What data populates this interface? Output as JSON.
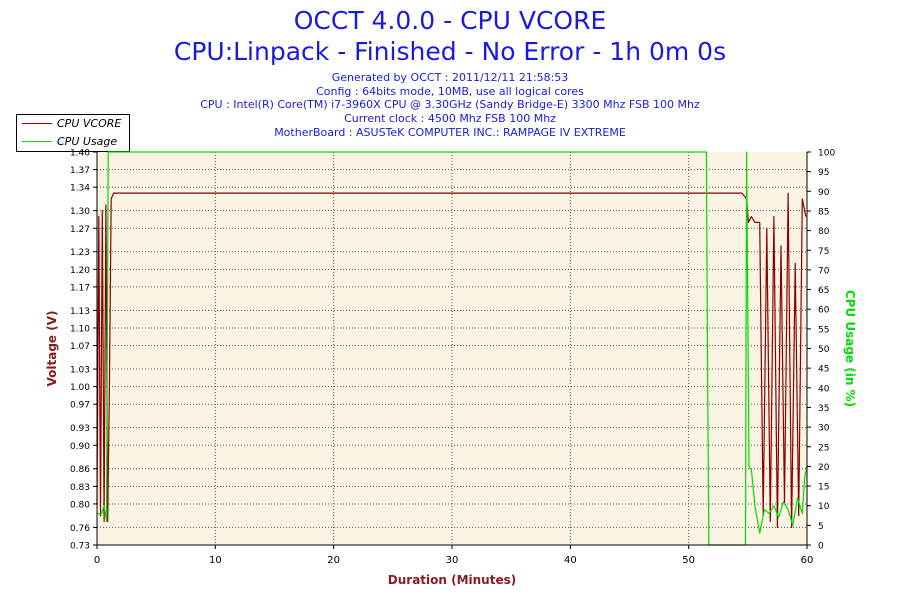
{
  "header": {
    "title": "OCCT 4.0.0 - CPU VCORE",
    "subtitle": "CPU:Linpack - Finished - No Error - 1h 0m 0s",
    "info_lines": [
      "Generated by OCCT : 2011/12/11 21:58:53",
      "Config : 64bits mode, 10MB, use all logical cores",
      "CPU : Intel(R) Core(TM) i7-3960X CPU @ 3.30GHz (Sandy Bridge-E) 3300 Mhz FSB 100 Mhz",
      "Current clock : 4500 Mhz FSB 100 Mhz",
      "MotherBoard : ASUSTeK COMPUTER INC.: RAMPAGE IV EXTREME"
    ]
  },
  "chart_data": {
    "type": "line",
    "title": "OCCT 4.0.0 - CPU VCORE",
    "xlabel": "Duration (Minutes)",
    "ylabel": "Voltage (V)",
    "ylabel_right": "CPU Usage (in %)",
    "xlim": [
      0,
      60
    ],
    "ylim": [
      0.73,
      1.4
    ],
    "ylim_right": [
      0,
      100
    ],
    "x_ticks": [
      0,
      10,
      20,
      30,
      40,
      50,
      60
    ],
    "y_ticks": [
      "0.73",
      "0.76",
      "0.80",
      "0.83",
      "0.86",
      "0.90",
      "0.93",
      "0.97",
      "1.00",
      "1.03",
      "1.07",
      "1.10",
      "1.13",
      "1.17",
      "1.20",
      "1.23",
      "1.27",
      "1.30",
      "1.34",
      "1.37",
      "1.40"
    ],
    "y_ticks_right": [
      0,
      5,
      10,
      15,
      20,
      25,
      30,
      35,
      40,
      45,
      50,
      55,
      60,
      65,
      70,
      75,
      80,
      85,
      90,
      95,
      100
    ],
    "grid": true,
    "legend_position": "top-left",
    "background_color": "#fbf3e3",
    "series": [
      {
        "name": "CPU VCORE",
        "axis": "left",
        "color": "#8b0000",
        "x": [
          0,
          0.15,
          0.3,
          0.45,
          0.6,
          0.75,
          0.9,
          1.05,
          1.2,
          1.4,
          2,
          5,
          10,
          15,
          20,
          25,
          30,
          35,
          40,
          45,
          50,
          51.5,
          52,
          53,
          54,
          54.5,
          54.9,
          55.05,
          55.3,
          55.6,
          56,
          56.3,
          56.6,
          56.9,
          57.2,
          57.5,
          57.8,
          58.1,
          58.4,
          58.7,
          59,
          59.3,
          59.6,
          59.9
        ],
        "y": [
          0.8,
          1.29,
          0.78,
          1.3,
          0.77,
          1.31,
          0.77,
          1.0,
          1.32,
          1.33,
          1.33,
          1.33,
          1.33,
          1.33,
          1.33,
          1.33,
          1.33,
          1.33,
          1.33,
          1.33,
          1.33,
          1.33,
          1.33,
          1.33,
          1.33,
          1.33,
          1.32,
          1.28,
          1.29,
          1.28,
          1.28,
          0.78,
          1.27,
          0.77,
          1.29,
          0.76,
          1.24,
          0.8,
          1.33,
          0.76,
          1.21,
          0.78,
          1.32,
          1.29
        ]
      },
      {
        "name": "CPU Usage",
        "axis": "right",
        "color": "#00dd00",
        "x": [
          0,
          0.4,
          0.6,
          0.8,
          0.95,
          1.05,
          1.2,
          1.4,
          5,
          10,
          20,
          30,
          40,
          50,
          51.5,
          51.6,
          51.7,
          51.8,
          52,
          53,
          54,
          54.8,
          54.9,
          55.1,
          55.3,
          55.6,
          56,
          56.4,
          56.8,
          57.2,
          57.6,
          58,
          58.4,
          58.8,
          59.2,
          59.6,
          59.8,
          60
        ],
        "y": [
          8,
          8,
          10,
          6,
          100,
          100,
          100,
          100,
          100,
          100,
          100,
          100,
          100,
          100,
          100,
          45,
          0,
          0,
          0,
          0,
          0,
          0,
          100,
          20,
          19,
          10,
          3,
          9,
          8,
          10,
          7,
          11,
          9,
          5,
          12,
          8,
          17,
          20
        ]
      }
    ]
  }
}
